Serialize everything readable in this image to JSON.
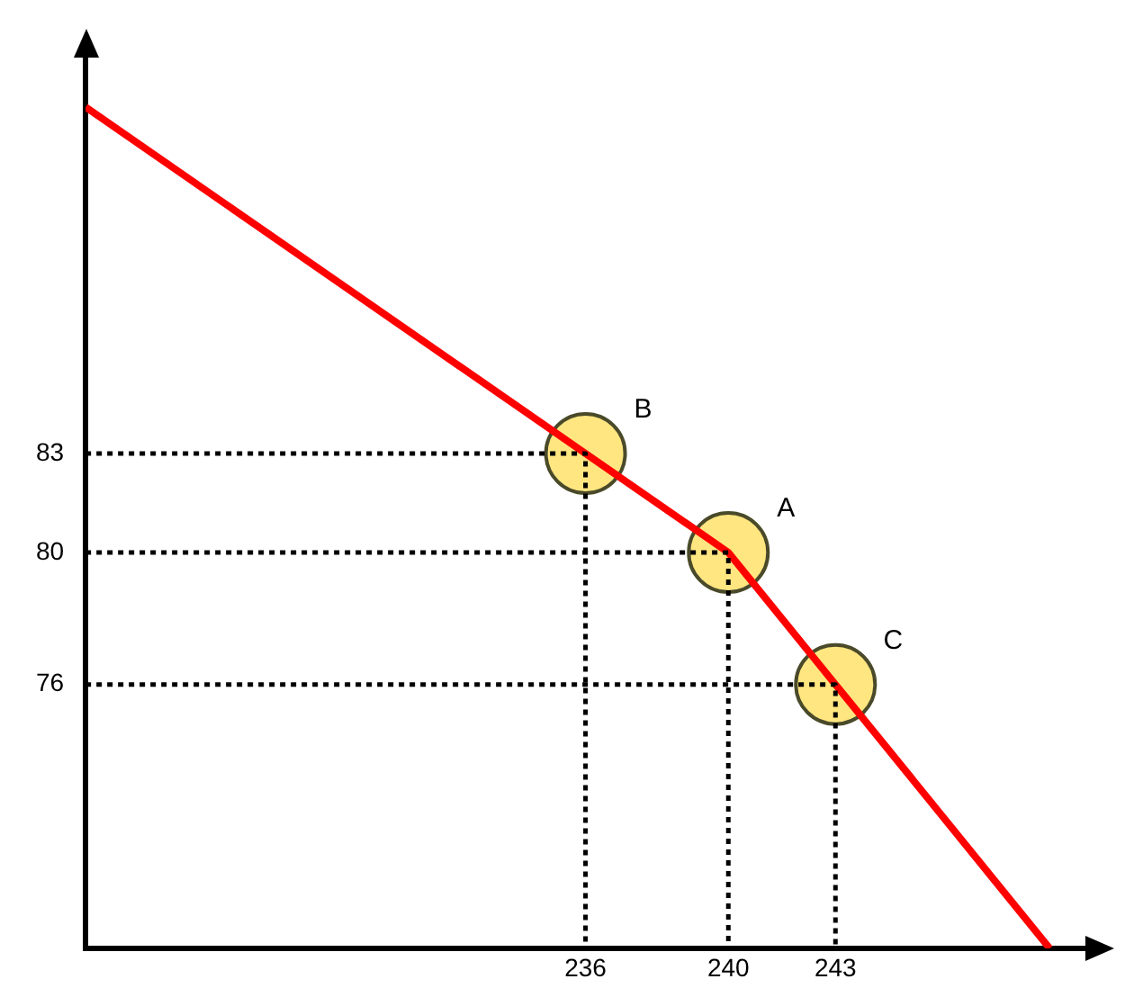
{
  "chart_data": {
    "type": "line",
    "xlim": [
      222,
      250
    ],
    "ylim": [
      68,
      95
    ],
    "xticks": [
      236,
      240,
      243
    ],
    "yticks": [
      83,
      80,
      76
    ],
    "grid": false,
    "legend": false,
    "series": [
      {
        "type": "line",
        "color": "#000000",
        "line_style": "dotted",
        "marker": "none",
        "x": [
          222,
          236,
          236
        ],
        "values": [
          83,
          83,
          68
        ]
      },
      {
        "type": "line",
        "color": "#000000",
        "line_style": "dotted",
        "marker": "none",
        "x": [
          222,
          240,
          240
        ],
        "values": [
          80,
          80,
          68
        ]
      },
      {
        "type": "line",
        "color": "#000000",
        "line_style": "dotted",
        "marker": "none",
        "x": [
          222,
          243,
          243
        ],
        "values": [
          76,
          76,
          68
        ]
      },
      {
        "type": "line",
        "color": "#ff0000",
        "line_style": "solid",
        "marker": "none",
        "x": [
          222,
          236,
          240,
          243,
          249
        ],
        "values": [
          93.5,
          83,
          80,
          76,
          68
        ]
      },
      {
        "type": "scatter",
        "color": "#ffe680",
        "marker": "circle",
        "x": [
          236,
          240,
          243
        ],
        "values": [
          83,
          80,
          76
        ]
      }
    ],
    "annotations": [
      {
        "text": "B",
        "x": 236,
        "y": 83
      },
      {
        "text": "A",
        "x": 240,
        "y": 80
      },
      {
        "text": "C",
        "x": 243,
        "y": 76
      }
    ]
  }
}
